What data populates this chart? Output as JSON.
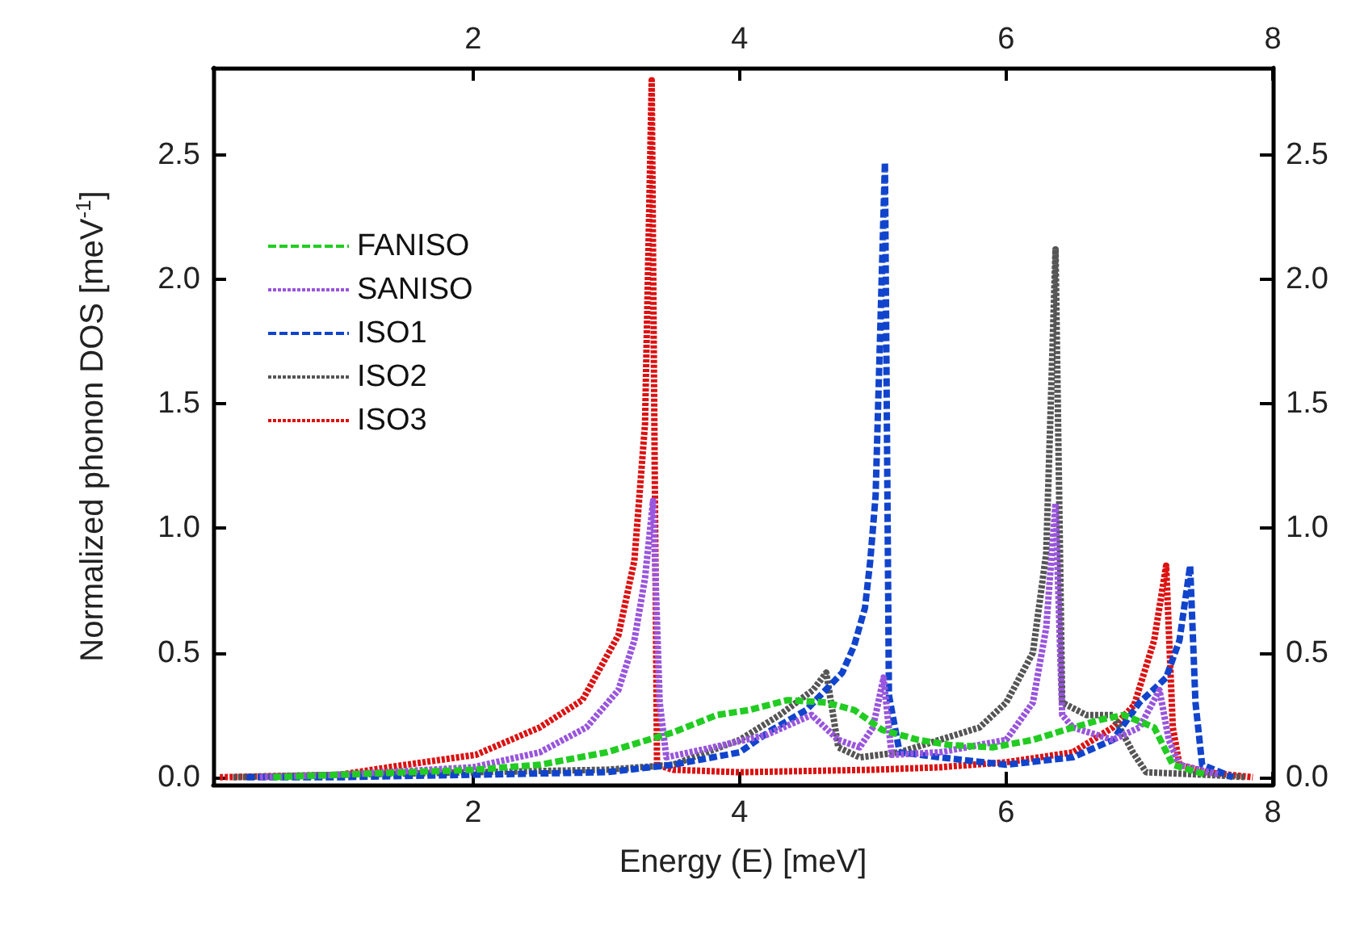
{
  "chart_data": {
    "type": "line",
    "xlabel": "Energy (E) [meV]",
    "ylabel": "Normalized phonon DOS [meV$^{-1}$]",
    "xlim": [
      0.05,
      8
    ],
    "xticks": [
      2,
      4,
      6,
      8
    ],
    "x2lim": [
      0.05,
      8
    ],
    "x2ticks": [
      2,
      4,
      6,
      8
    ],
    "ylim": [
      -0.03,
      2.85
    ],
    "yticks": [
      {
        "value": 0,
        "label": "0.0"
      },
      {
        "value": 0.5,
        "label": "0.5"
      },
      {
        "value": 1,
        "label": "1.0"
      },
      {
        "value": 1.5,
        "label": "1.5"
      },
      {
        "value": 2,
        "label": "2.0"
      },
      {
        "value": 2.5,
        "label": "2.5"
      }
    ],
    "y2lim": [
      -0.03,
      2.85
    ],
    "y2ticks": [
      {
        "value": 0,
        "label": "0.0"
      },
      {
        "value": 0.5,
        "label": "0.5"
      },
      {
        "value": 1,
        "label": "1.0"
      },
      {
        "value": 1.5,
        "label": "1.5"
      },
      {
        "value": 2,
        "label": "2.0"
      },
      {
        "value": 2.5,
        "label": "2.5"
      }
    ],
    "grid": false,
    "legend": "top left",
    "marker": "none",
    "series": [
      {
        "name": "FANISO",
        "color": "#22cc22",
        "line_style": "dashed",
        "x": [
          0.5,
          1,
          2,
          2.5,
          3,
          3.5,
          3.83,
          4.07,
          4.36,
          4.65,
          4.86,
          5.07,
          5.34,
          5.57,
          5.9,
          6.2,
          6.44,
          6.7,
          6.88,
          7.11,
          7.25,
          7.5
        ],
        "values": [
          0.0,
          0.01,
          0.03,
          0.05,
          0.1,
          0.18,
          0.25,
          0.27,
          0.31,
          0.3,
          0.27,
          0.19,
          0.15,
          0.13,
          0.12,
          0.15,
          0.19,
          0.23,
          0.25,
          0.2,
          0.05,
          0.01
        ]
      },
      {
        "name": "SANISO",
        "color": "#9955dd",
        "line_style": "dotted",
        "x": [
          0.4,
          1,
          2,
          2.5,
          2.85,
          3.09,
          3.21,
          3.29,
          3.35,
          3.4,
          3.45,
          3.8,
          4.2,
          4.54,
          4.74,
          4.9,
          5.0,
          5.08,
          5.14,
          5.5,
          6.0,
          6.2,
          6.3,
          6.37,
          6.42,
          6.5,
          6.8,
          7.0,
          7.15,
          7.22,
          7.3,
          7.6
        ],
        "values": [
          0.0,
          0.01,
          0.04,
          0.1,
          0.2,
          0.35,
          0.55,
          0.8,
          1.11,
          0.3,
          0.08,
          0.12,
          0.17,
          0.25,
          0.15,
          0.12,
          0.2,
          0.4,
          0.09,
          0.1,
          0.15,
          0.3,
          0.6,
          1.1,
          0.25,
          0.2,
          0.15,
          0.2,
          0.35,
          0.15,
          0.05,
          0.01
        ]
      },
      {
        "name": "ISO1",
        "color": "#1144cc",
        "line_style": "dashed",
        "x": [
          0.3,
          1,
          2,
          3,
          3.5,
          4.0,
          4.24,
          4.5,
          4.77,
          4.86,
          4.94,
          4.98,
          5.02,
          5.09,
          5.12,
          5.2,
          5.5,
          6.0,
          6.5,
          6.8,
          7.0,
          7.2,
          7.3,
          7.38,
          7.42,
          7.47,
          7.7
        ],
        "values": [
          0.0,
          0.0,
          0.01,
          0.02,
          0.05,
          0.1,
          0.19,
          0.27,
          0.42,
          0.53,
          0.68,
          0.87,
          1.13,
          2.47,
          0.33,
          0.1,
          0.08,
          0.05,
          0.08,
          0.15,
          0.3,
          0.4,
          0.55,
          0.85,
          0.3,
          0.05,
          0.0
        ]
      },
      {
        "name": "ISO2",
        "color": "#555555",
        "line_style": "dotted",
        "x": [
          0.2,
          1,
          2,
          3,
          3.5,
          4.0,
          4.3,
          4.55,
          4.65,
          4.74,
          4.9,
          5.2,
          5.5,
          5.8,
          6.0,
          6.2,
          6.3,
          6.37,
          6.42,
          6.6,
          6.8,
          6.95,
          7.05,
          7.5,
          7.8
        ],
        "values": [
          0.0,
          0.01,
          0.02,
          0.03,
          0.05,
          0.15,
          0.25,
          0.35,
          0.42,
          0.12,
          0.08,
          0.1,
          0.15,
          0.2,
          0.3,
          0.5,
          0.9,
          2.12,
          0.3,
          0.25,
          0.25,
          0.1,
          0.02,
          0.01,
          0.0
        ]
      },
      {
        "name": "ISO3",
        "color": "#dd1111",
        "line_style": "dotted",
        "x": [
          0.1,
          1,
          1.43,
          2.02,
          2.5,
          2.82,
          3.09,
          3.21,
          3.29,
          3.34,
          3.38,
          3.5,
          4,
          5,
          5.5,
          6,
          6.5,
          6.8,
          6.96,
          7.11,
          7.2,
          7.25,
          7.3,
          7.5,
          7.85
        ],
        "values": [
          0.0,
          0.01,
          0.045,
          0.09,
          0.2,
          0.31,
          0.57,
          0.87,
          1.42,
          2.8,
          0.05,
          0.03,
          0.02,
          0.03,
          0.04,
          0.06,
          0.1,
          0.2,
          0.29,
          0.55,
          0.85,
          0.2,
          0.05,
          0.02,
          0.0
        ]
      }
    ]
  }
}
